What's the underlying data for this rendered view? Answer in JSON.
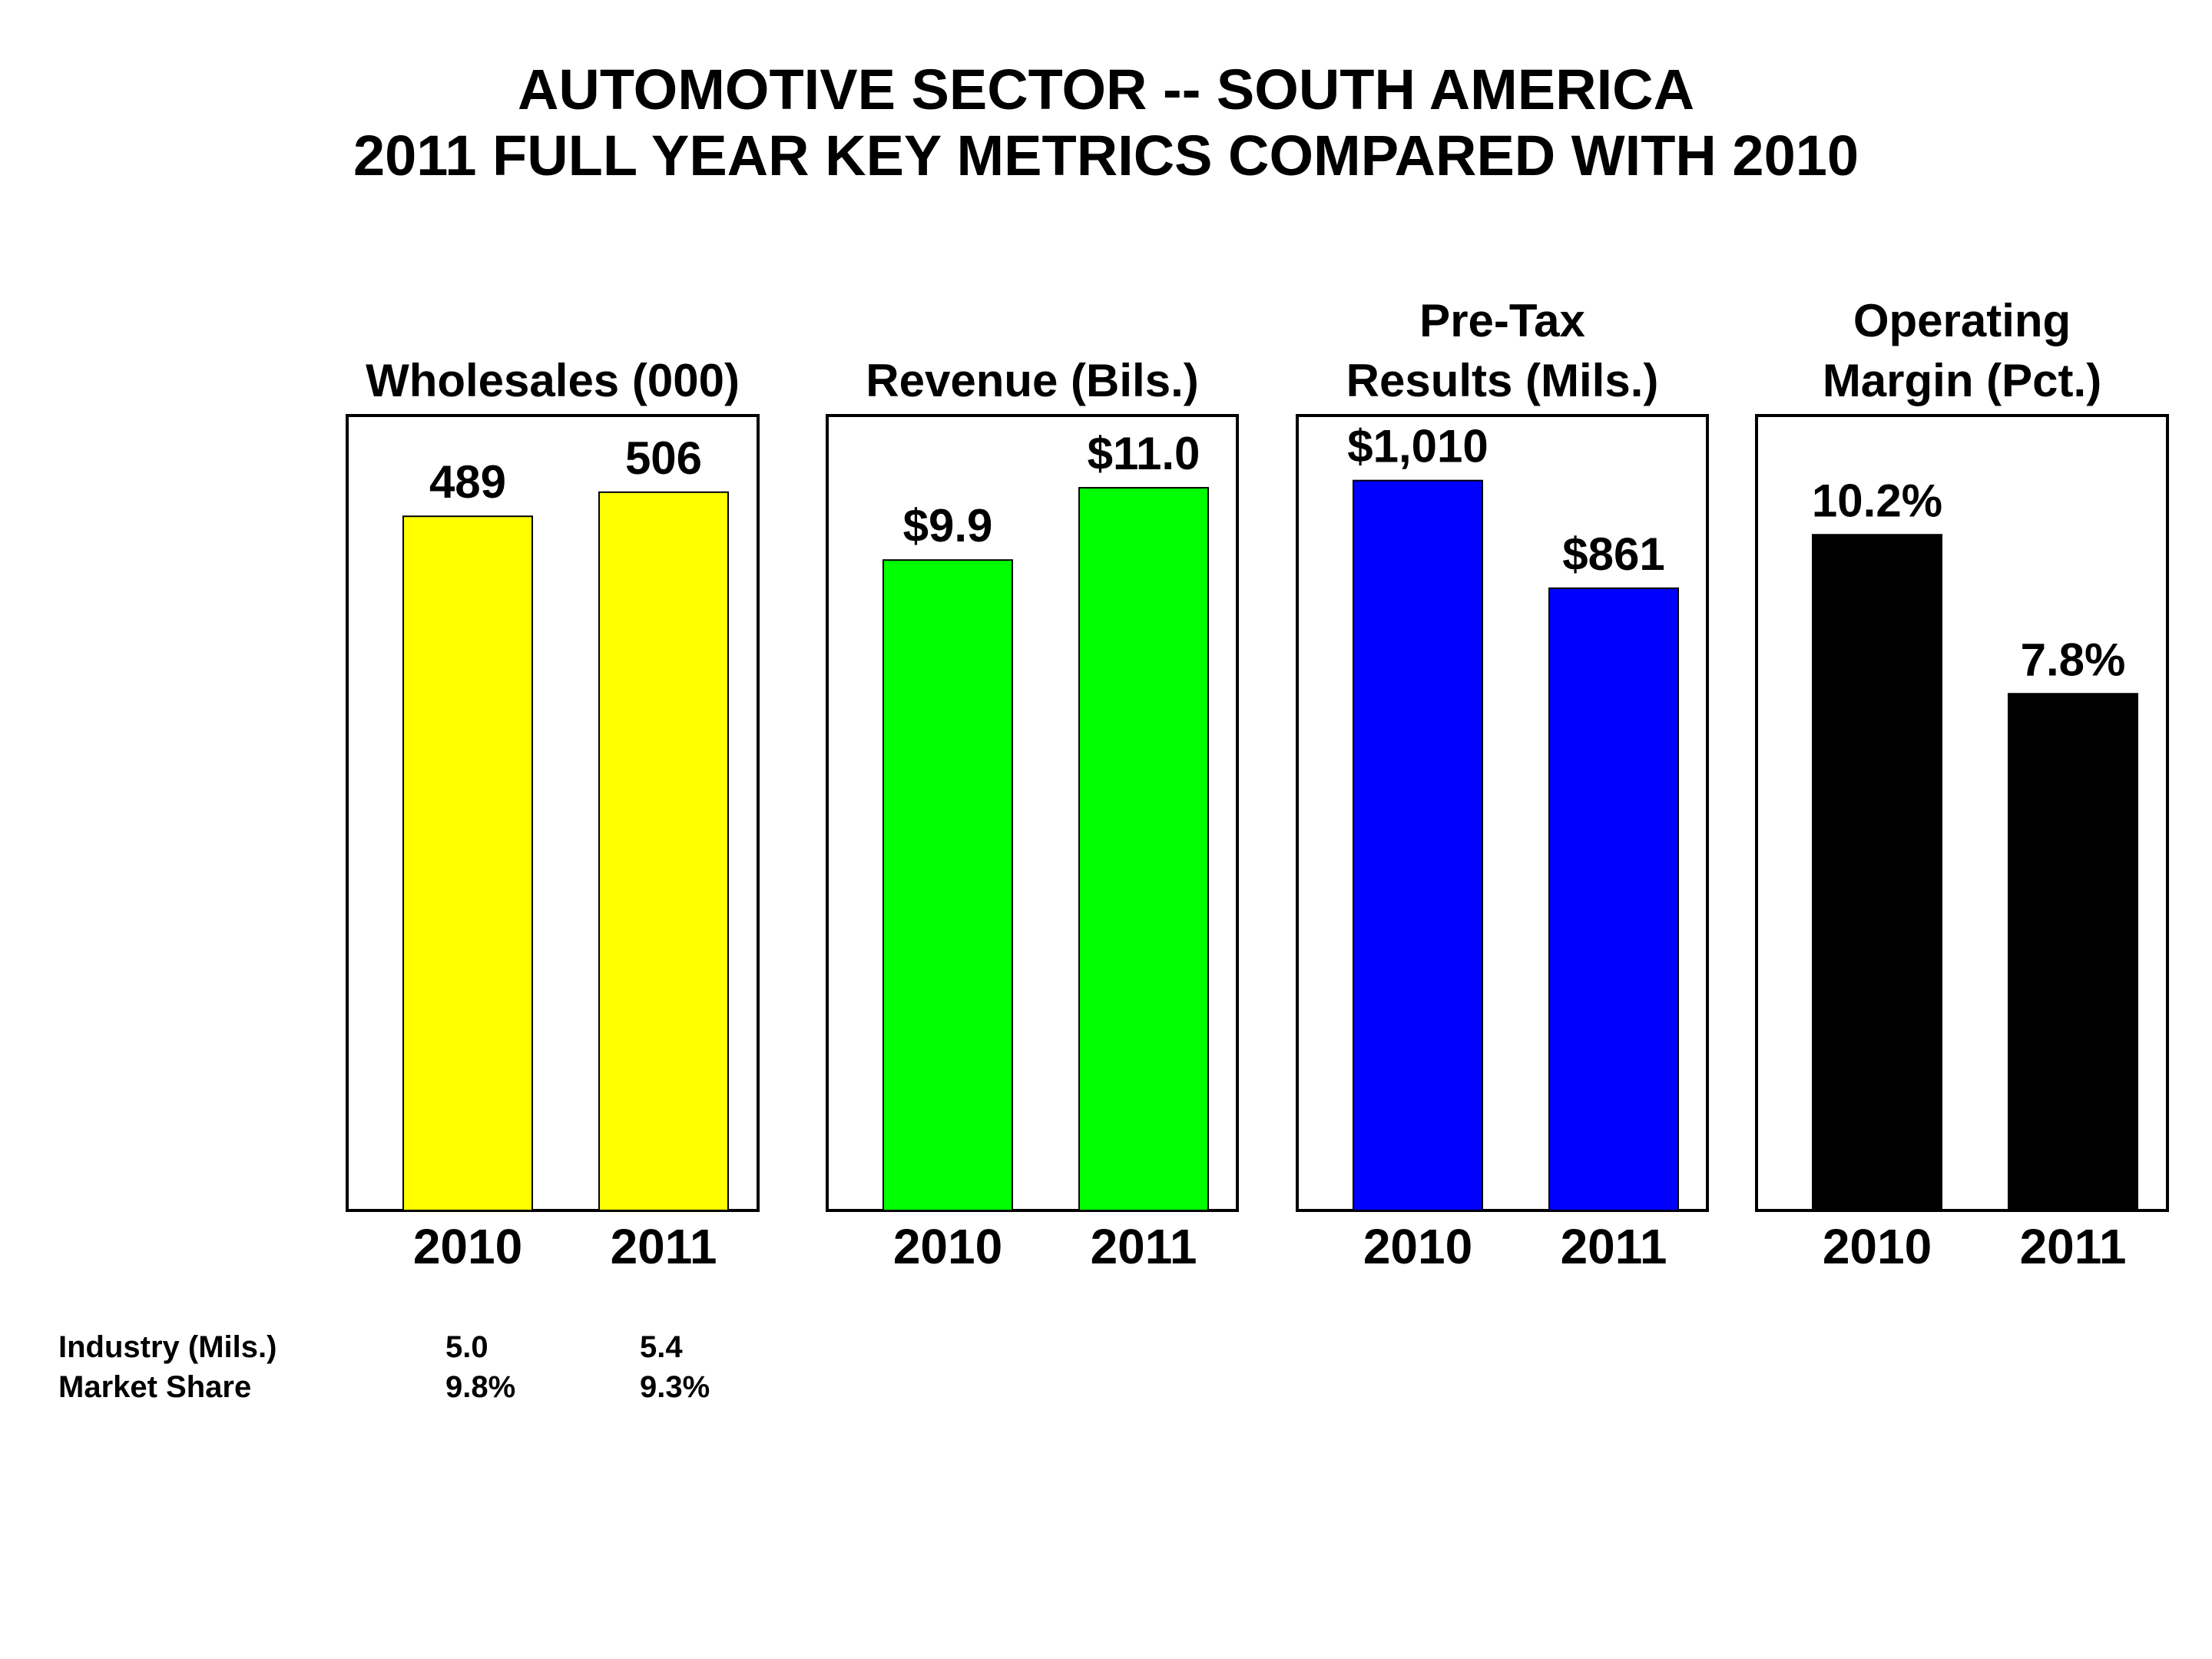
{
  "title": {
    "line1": "AUTOMOTIVE SECTOR -- SOUTH AMERICA",
    "line2": "2011 FULL YEAR KEY METRICS COMPARED WITH 2010"
  },
  "colors": {
    "wholesales": "#ffff00",
    "revenue": "#00ff00",
    "pretax": "#0000ff",
    "margin": "#000000"
  },
  "chart_data": [
    {
      "type": "bar",
      "title_lines": [
        "Wholesales (000)"
      ],
      "categories": [
        "2010",
        "2011"
      ],
      "values": [
        489,
        506
      ],
      "value_labels": [
        "489",
        "506"
      ],
      "ylim": [
        0,
        560
      ],
      "color": "#ffff00"
    },
    {
      "type": "bar",
      "title_lines": [
        "Revenue (Bils.)"
      ],
      "categories": [
        "2010",
        "2011"
      ],
      "values": [
        9.9,
        11.0
      ],
      "value_labels": [
        "$9.9",
        "$11.0"
      ],
      "ylim": [
        0,
        12.1
      ],
      "color": "#00ff00"
    },
    {
      "type": "bar",
      "title_lines": [
        "Pre-Tax",
        "Results (Mils.)"
      ],
      "categories": [
        "2010",
        "2011"
      ],
      "values": [
        1010,
        861
      ],
      "value_labels": [
        "$1,010",
        "$861"
      ],
      "ylim": [
        0,
        1100
      ],
      "color": "#0000ff"
    },
    {
      "type": "bar",
      "title_lines": [
        "Operating",
        "Margin (Pct.)"
      ],
      "categories": [
        "2010",
        "2011"
      ],
      "values": [
        10.2,
        7.8
      ],
      "value_labels": [
        "10.2%",
        "7.8%"
      ],
      "ylim": [
        0,
        12.0
      ],
      "color": "#000000"
    }
  ],
  "stats": {
    "industry": {
      "label": "Industry (Mils.)",
      "v2010": "5.0",
      "v2011": "5.4"
    },
    "market_share": {
      "label": "Market Share",
      "v2010": "9.8%",
      "v2011": "9.3%"
    }
  }
}
